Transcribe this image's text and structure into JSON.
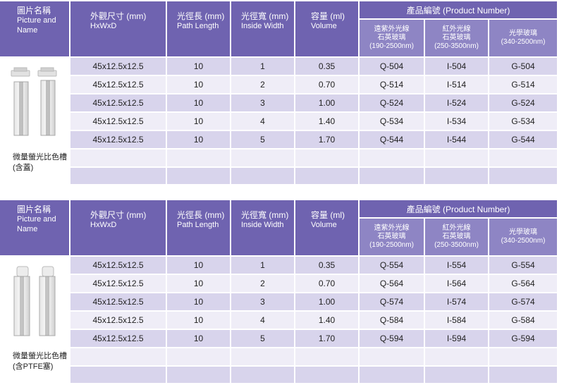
{
  "headers": {
    "name_cn": "圖片名稱",
    "name_en1": "Picture and",
    "name_en2": "Name",
    "dim_cn": "外觀尺寸 (mm)",
    "dim_en": "HxWxD",
    "path_cn": "光徑長 (mm)",
    "path_en": "Path Length",
    "width_cn": "光徑寬 (mm)",
    "width_en": "Inside Width",
    "vol_cn": "容量 (ml)",
    "vol_en": "Volume",
    "pn": "產品編號 (Product Number)",
    "sub1_a": "遠紫外光線",
    "sub1_b": "石英玻璃",
    "sub1_c": "(190-2500nm)",
    "sub2_a": "紅外光線",
    "sub2_b": "石英玻璃",
    "sub2_c": "(250-3500nm)",
    "sub3_a": "光學玻璃",
    "sub3_c": "(340-2500nm)"
  },
  "tables": [
    {
      "caption1": "微量螢光比色槽",
      "caption2": "(含蓋)",
      "rows": [
        {
          "dim": "45x12.5x12.5",
          "path": "10",
          "width": "1",
          "vol": "0.35",
          "q": "Q-504",
          "i": "I-504",
          "g": "G-504"
        },
        {
          "dim": "45x12.5x12.5",
          "path": "10",
          "width": "2",
          "vol": "0.70",
          "q": "Q-514",
          "i": "I-514",
          "g": "G-514"
        },
        {
          "dim": "45x12.5x12.5",
          "path": "10",
          "width": "3",
          "vol": "1.00",
          "q": "Q-524",
          "i": "I-524",
          "g": "G-524"
        },
        {
          "dim": "45x12.5x12.5",
          "path": "10",
          "width": "4",
          "vol": "1.40",
          "q": "Q-534",
          "i": "I-534",
          "g": "G-534"
        },
        {
          "dim": "45x12.5x12.5",
          "path": "10",
          "width": "5",
          "vol": "1.70",
          "q": "Q-544",
          "i": "I-544",
          "g": "G-544"
        },
        {
          "dim": "",
          "path": "",
          "width": "",
          "vol": "",
          "q": "",
          "i": "",
          "g": ""
        },
        {
          "dim": "",
          "path": "",
          "width": "",
          "vol": "",
          "q": "",
          "i": "",
          "g": ""
        }
      ]
    },
    {
      "caption1": "微量螢光比色槽",
      "caption2": "(含PTFE塞)",
      "rows": [
        {
          "dim": "45x12.5x12.5",
          "path": "10",
          "width": "1",
          "vol": "0.35",
          "q": "Q-554",
          "i": "I-554",
          "g": "G-554"
        },
        {
          "dim": "45x12.5x12.5",
          "path": "10",
          "width": "2",
          "vol": "0.70",
          "q": "Q-564",
          "i": "I-564",
          "g": "G-564"
        },
        {
          "dim": "45x12.5x12.5",
          "path": "10",
          "width": "3",
          "vol": "1.00",
          "q": "Q-574",
          "i": "I-574",
          "g": "G-574"
        },
        {
          "dim": "45x12.5x12.5",
          "path": "10",
          "width": "4",
          "vol": "1.40",
          "q": "Q-584",
          "i": "I-584",
          "g": "G-584"
        },
        {
          "dim": "45x12.5x12.5",
          "path": "10",
          "width": "5",
          "vol": "1.70",
          "q": "Q-594",
          "i": "I-594",
          "g": "G-594"
        },
        {
          "dim": "",
          "path": "",
          "width": "",
          "vol": "",
          "q": "",
          "i": "",
          "g": ""
        },
        {
          "dim": "",
          "path": "",
          "width": "",
          "vol": "",
          "q": "",
          "i": "",
          "g": ""
        }
      ]
    }
  ]
}
